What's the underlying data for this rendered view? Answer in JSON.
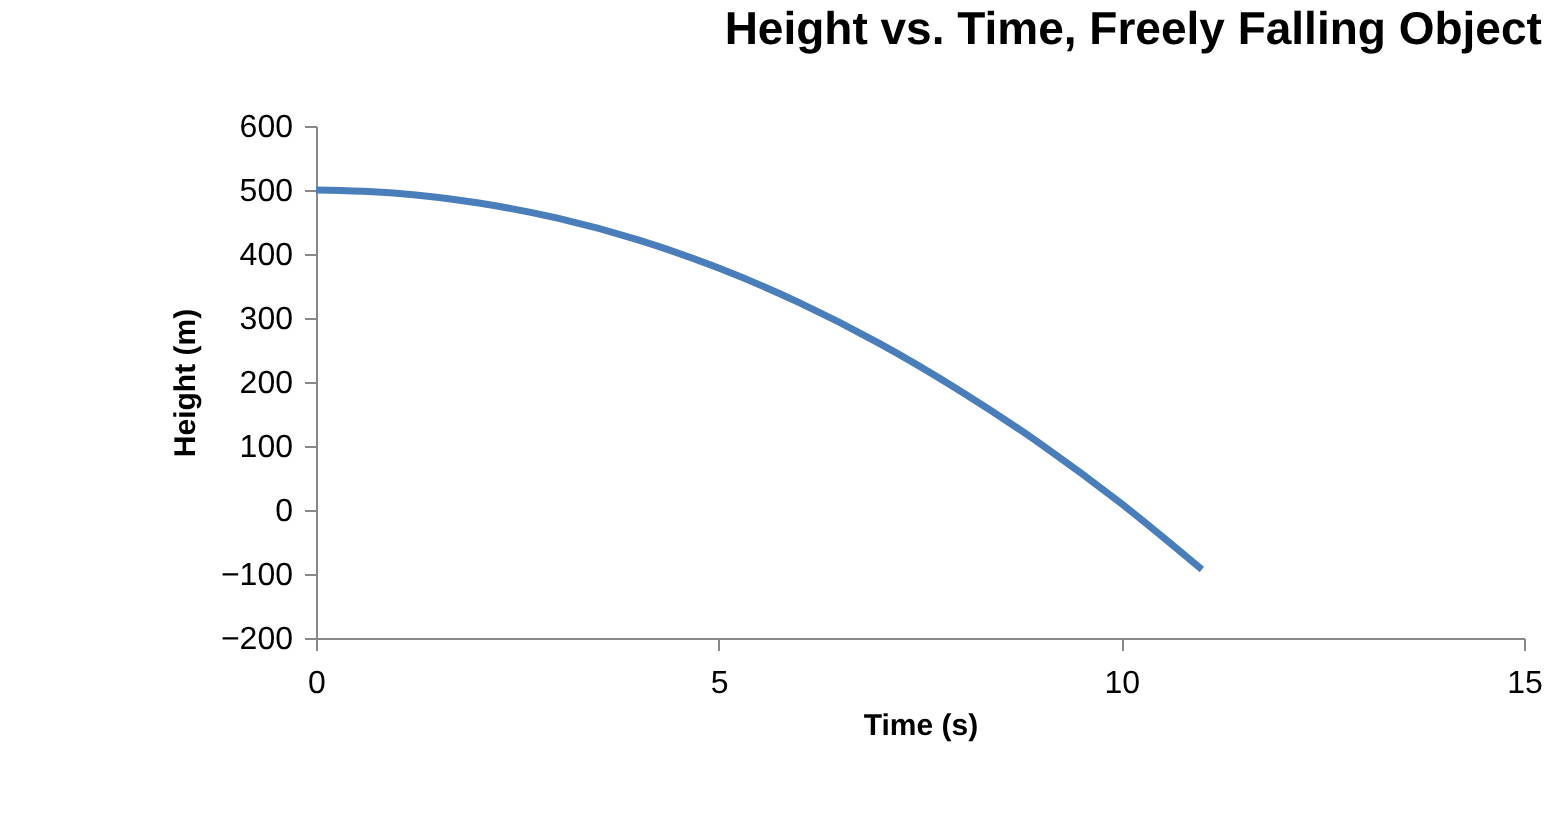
{
  "chart_data": {
    "type": "line",
    "title": "Height vs. Time, Freely Falling Object",
    "xlabel": "Time (s)",
    "ylabel": "Height (m)",
    "x": [
      0,
      1,
      2,
      3,
      4,
      5,
      6,
      7,
      8,
      9,
      10,
      11
    ],
    "series": [
      {
        "color": "#4a7ebb",
        "values": [
          500,
          495,
          480,
          456,
          422,
          378,
          324,
          260,
          186,
          103,
          10,
          -93
        ]
      }
    ],
    "xlim": [
      0,
      15
    ],
    "xticks": [
      0,
      5,
      10,
      15
    ],
    "ylim": [
      -200,
      600
    ],
    "yticks": [
      -200,
      -100,
      0,
      100,
      200,
      300,
      400,
      500,
      600
    ],
    "grid": false,
    "marker": "none",
    "line_style": "solid"
  }
}
